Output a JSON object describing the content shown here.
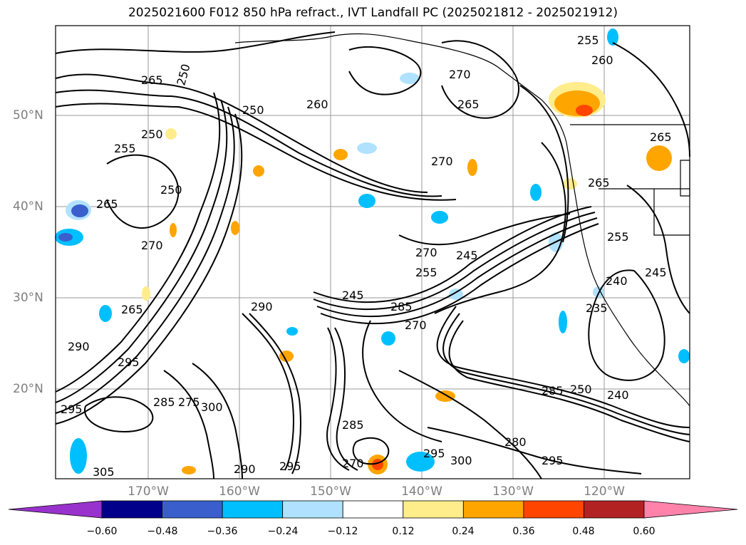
{
  "title": "2025021600 F012 850 hPa refract., IVT Landfall PC (2025021812 - 2025021912)",
  "lon_labels": [
    "170°W",
    "160°W",
    "150°W",
    "140°W",
    "130°W",
    "120°W"
  ],
  "lat_labels": [
    "50°N",
    "40°N",
    "30°N",
    "20°N"
  ],
  "contour_labels": [
    "250",
    "255",
    "260",
    "265",
    "270",
    "275",
    "280",
    "285",
    "290",
    "295",
    "300",
    "305",
    "235",
    "240",
    "245"
  ],
  "colorbar": {
    "ticks": [
      "−0.60",
      "−0.48",
      "−0.36",
      "−0.24",
      "−0.12",
      "0.12",
      "0.24",
      "0.36",
      "0.48",
      "0.60"
    ],
    "colors": [
      "#9932cc",
      "#00008b",
      "#3a5fcd",
      "#00bfff",
      "#b0e2ff",
      "#ffffff",
      "#ffec8b",
      "#ffa500",
      "#ff4500",
      "#b22222",
      "#ff82ab"
    ]
  },
  "colors": {
    "contour": "#000000",
    "axis_label": "#7f7f7f"
  }
}
